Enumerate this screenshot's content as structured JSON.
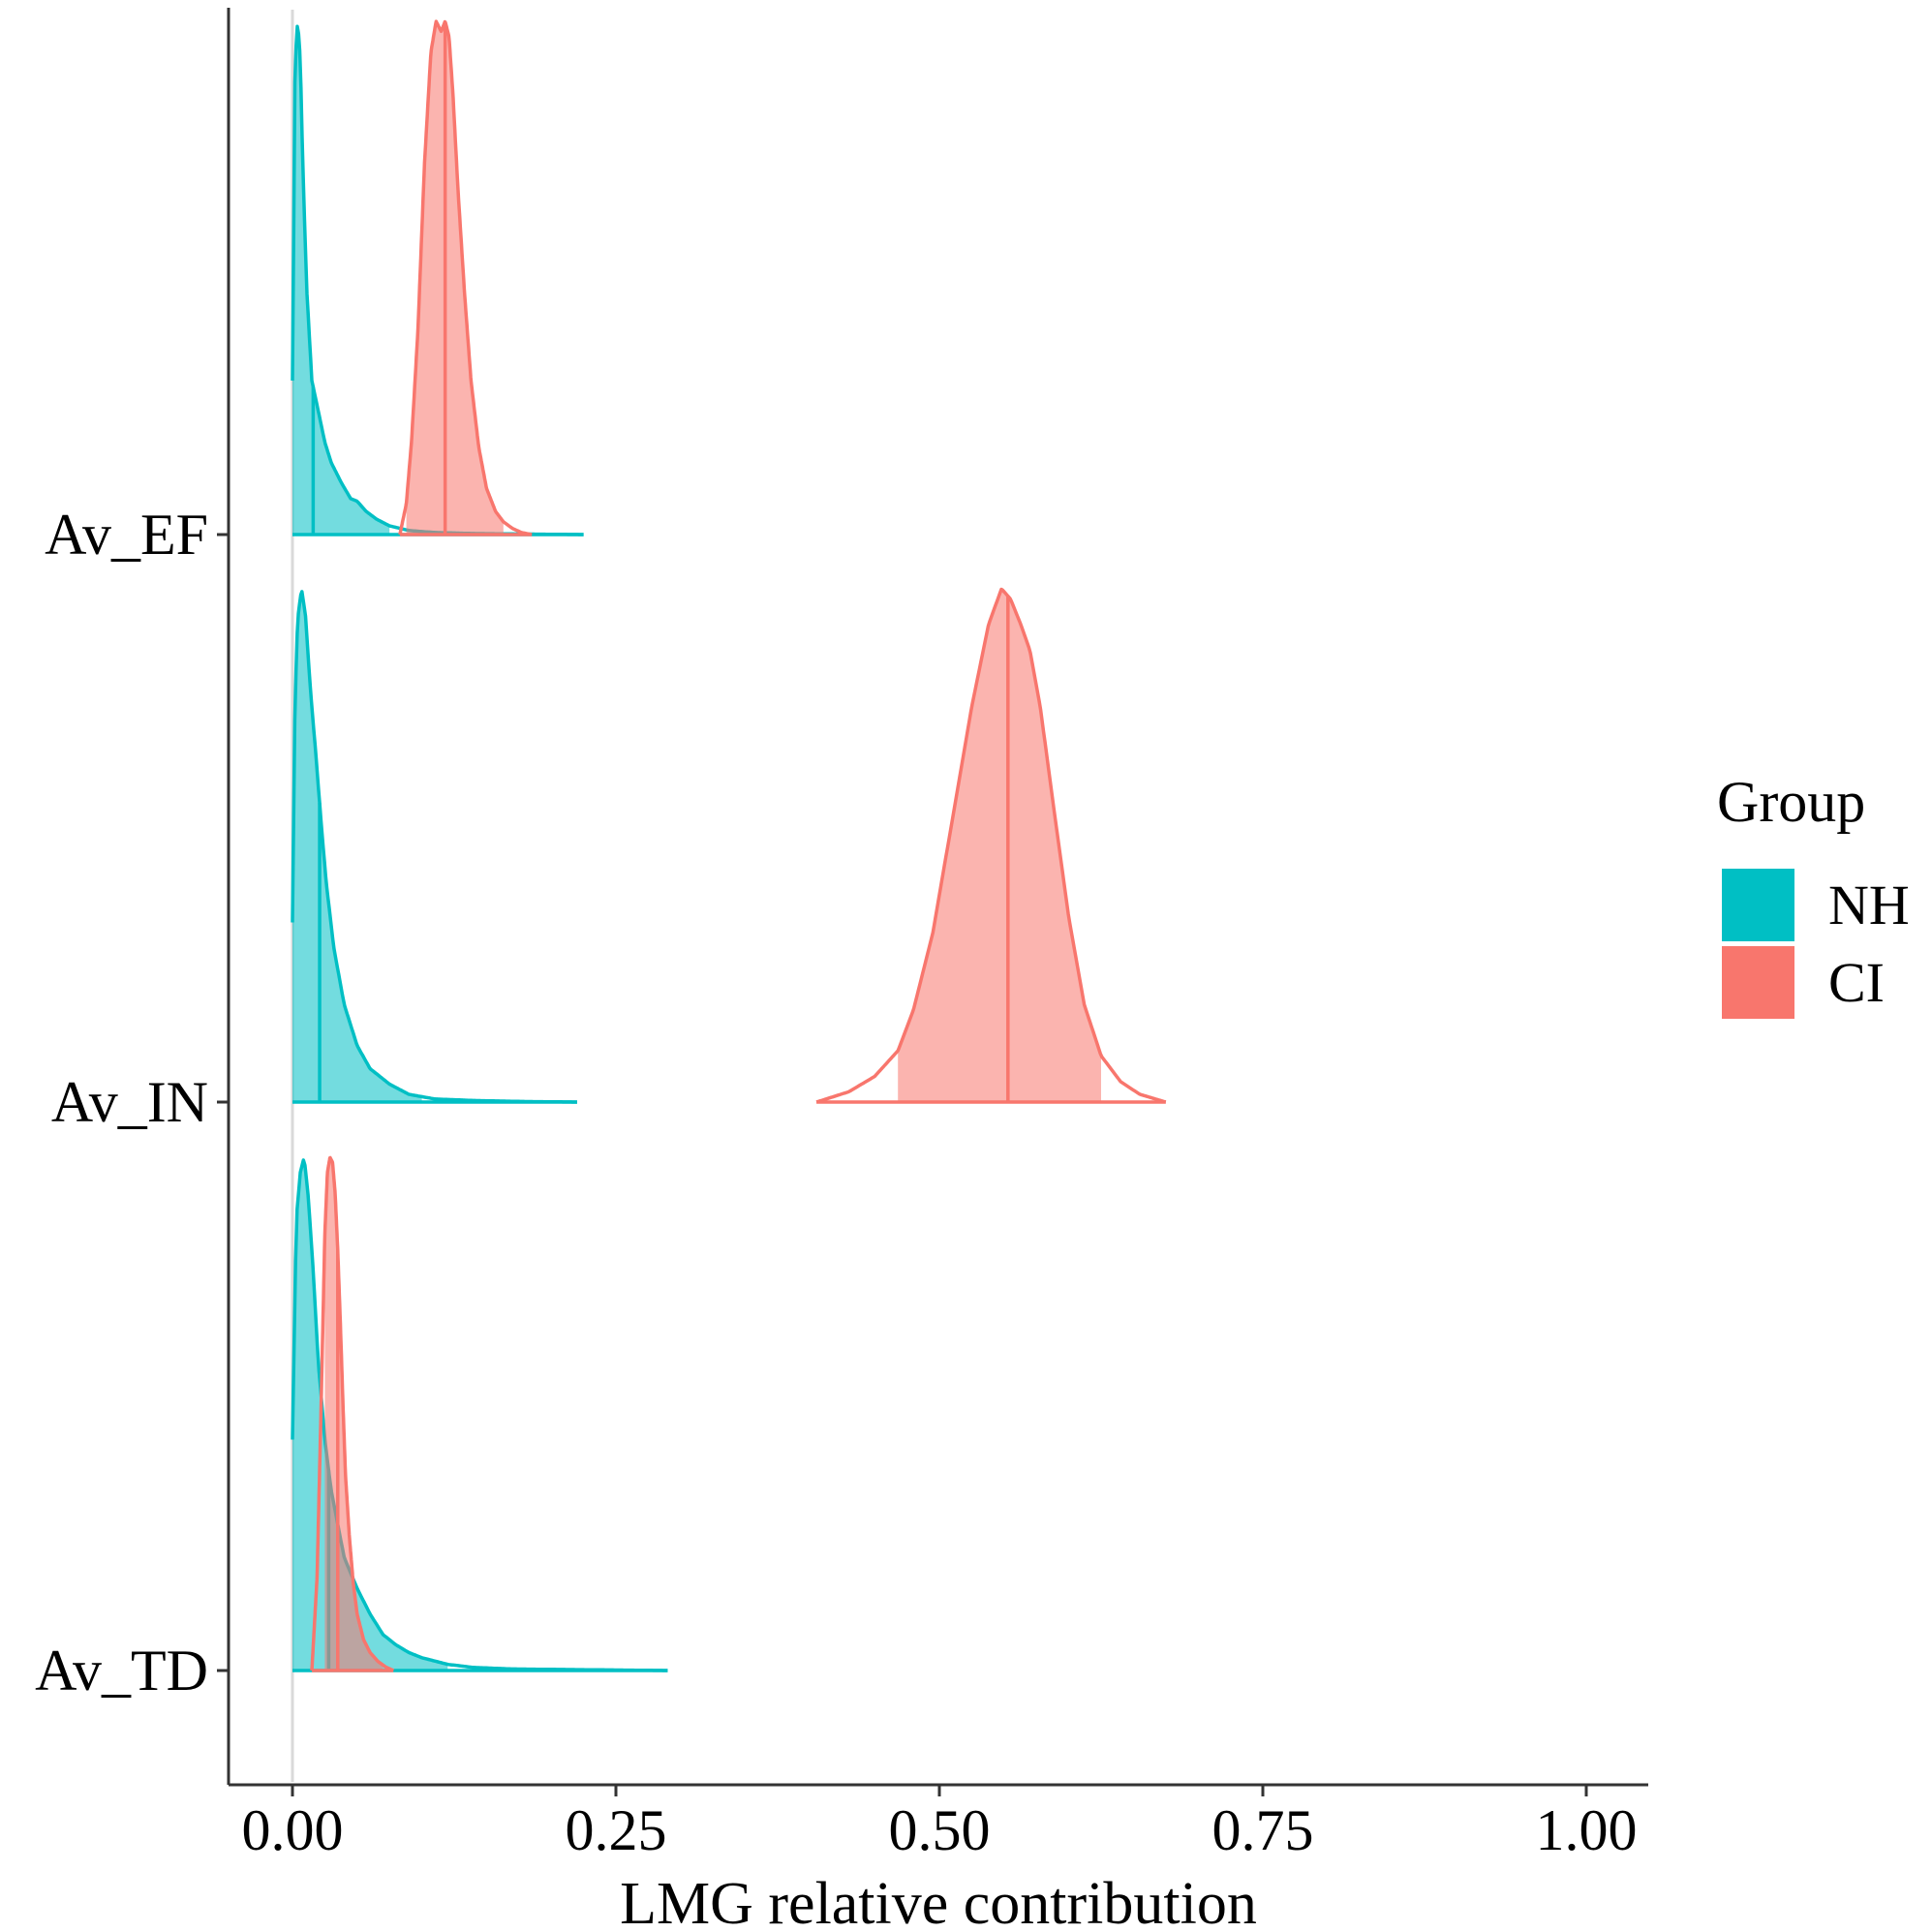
{
  "chart_data": {
    "type": "ridgeline-density",
    "title": "",
    "xlabel": "LMG relative contribution",
    "ylabel": "",
    "xlim": [
      -0.025,
      1.05
    ],
    "x_ticks": [
      0.0,
      0.25,
      0.5,
      0.75,
      1.0
    ],
    "x_tick_labels": [
      "0.00",
      "0.25",
      "0.50",
      "0.75",
      "1.00"
    ],
    "categories": [
      "Av_EF",
      "Av_IN",
      "Av_TD"
    ],
    "grid": false,
    "legend": {
      "title": "Group",
      "position": "right",
      "entries": [
        {
          "label": "NH",
          "color": "#00BFC4"
        },
        {
          "label": "CI",
          "color": "#F8766D"
        }
      ]
    },
    "series": [
      {
        "name": "NH",
        "color": "#00BFC4",
        "ridges": [
          {
            "category": "Av_EF",
            "min": 0.0,
            "max": 0.225,
            "shade_from": 0.0,
            "shade_to": 0.075,
            "median": 0.016,
            "x": [
              0.0,
              0.002,
              0.004,
              0.006,
              0.008,
              0.011,
              0.015,
              0.02,
              0.025,
              0.03,
              0.038,
              0.045,
              0.05,
              0.057,
              0.065,
              0.075,
              0.09,
              0.11,
              0.14,
              0.18,
              0.225
            ],
            "density": [
              0.3,
              0.92,
              1.0,
              0.93,
              0.72,
              0.48,
              0.3,
              0.24,
              0.18,
              0.14,
              0.1,
              0.07,
              0.065,
              0.045,
              0.03,
              0.017,
              0.008,
              0.004,
              0.002,
              0.001,
              0.0
            ]
          },
          {
            "category": "Av_IN",
            "min": 0.0,
            "max": 0.22,
            "shade_from": 0.0,
            "shade_to": 0.1,
            "median": 0.021,
            "x": [
              0.0,
              0.002,
              0.004,
              0.007,
              0.01,
              0.014,
              0.018,
              0.022,
              0.026,
              0.032,
              0.04,
              0.05,
              0.06,
              0.075,
              0.09,
              0.11,
              0.14,
              0.18,
              0.22
            ],
            "density": [
              0.35,
              0.78,
              0.94,
              1.0,
              0.95,
              0.8,
              0.68,
              0.55,
              0.43,
              0.3,
              0.19,
              0.11,
              0.065,
              0.035,
              0.015,
              0.006,
              0.003,
              0.001,
              0.0
            ]
          },
          {
            "category": "Av_TD",
            "min": 0.0,
            "max": 0.29,
            "shade_from": 0.0,
            "shade_to": 0.12,
            "median": 0.028,
            "x": [
              0.0,
              0.003,
              0.006,
              0.009,
              0.012,
              0.016,
              0.02,
              0.025,
              0.03,
              0.04,
              0.05,
              0.06,
              0.07,
              0.08,
              0.09,
              0.1,
              0.12,
              0.14,
              0.17,
              0.21,
              0.25,
              0.29
            ],
            "density": [
              0.45,
              0.88,
              0.97,
              1.0,
              0.93,
              0.78,
              0.6,
              0.45,
              0.35,
              0.22,
              0.16,
              0.11,
              0.07,
              0.05,
              0.035,
              0.025,
              0.012,
              0.006,
              0.003,
              0.002,
              0.001,
              0.0
            ]
          }
        ]
      },
      {
        "name": "CI",
        "color": "#F8766D",
        "ridges": [
          {
            "category": "Av_EF",
            "min": 0.083,
            "max": 0.185,
            "shade_from": 0.088,
            "shade_to": 0.163,
            "median": 0.118,
            "x": [
              0.083,
              0.088,
              0.092,
              0.097,
              0.102,
              0.107,
              0.111,
              0.115,
              0.118,
              0.121,
              0.124,
              0.128,
              0.133,
              0.138,
              0.144,
              0.15,
              0.157,
              0.163,
              0.17,
              0.177,
              0.185
            ],
            "density": [
              0.0,
              0.06,
              0.18,
              0.4,
              0.72,
              0.94,
              1.0,
              0.98,
              1.0,
              0.97,
              0.86,
              0.67,
              0.47,
              0.3,
              0.17,
              0.09,
              0.045,
              0.025,
              0.012,
              0.004,
              0.0
            ]
          },
          {
            "category": "Av_IN",
            "min": 0.405,
            "max": 0.675,
            "shade_from": 0.468,
            "shade_to": 0.625,
            "median": 0.553,
            "x": [
              0.405,
              0.43,
              0.45,
              0.468,
              0.48,
              0.495,
              0.51,
              0.525,
              0.538,
              0.548,
              0.555,
              0.563,
              0.57,
              0.578,
              0.588,
              0.6,
              0.612,
              0.625,
              0.64,
              0.655,
              0.675
            ],
            "density": [
              0.0,
              0.02,
              0.05,
              0.1,
              0.18,
              0.33,
              0.55,
              0.77,
              0.93,
              1.0,
              0.98,
              0.93,
              0.88,
              0.77,
              0.58,
              0.36,
              0.19,
              0.09,
              0.04,
              0.015,
              0.0
            ]
          },
          {
            "category": "Av_TD",
            "min": 0.015,
            "max": 0.078,
            "shade_from": 0.025,
            "shade_to": 0.07,
            "median": 0.035,
            "x": [
              0.015,
              0.019,
              0.022,
              0.025,
              0.027,
              0.029,
              0.031,
              0.033,
              0.035,
              0.037,
              0.039,
              0.041,
              0.044,
              0.047,
              0.05,
              0.055,
              0.06,
              0.066,
              0.072,
              0.078
            ],
            "density": [
              0.0,
              0.18,
              0.5,
              0.85,
              0.97,
              1.0,
              0.99,
              0.93,
              0.82,
              0.68,
              0.52,
              0.38,
              0.26,
              0.17,
              0.11,
              0.06,
              0.035,
              0.018,
              0.007,
              0.0
            ]
          }
        ]
      }
    ]
  }
}
